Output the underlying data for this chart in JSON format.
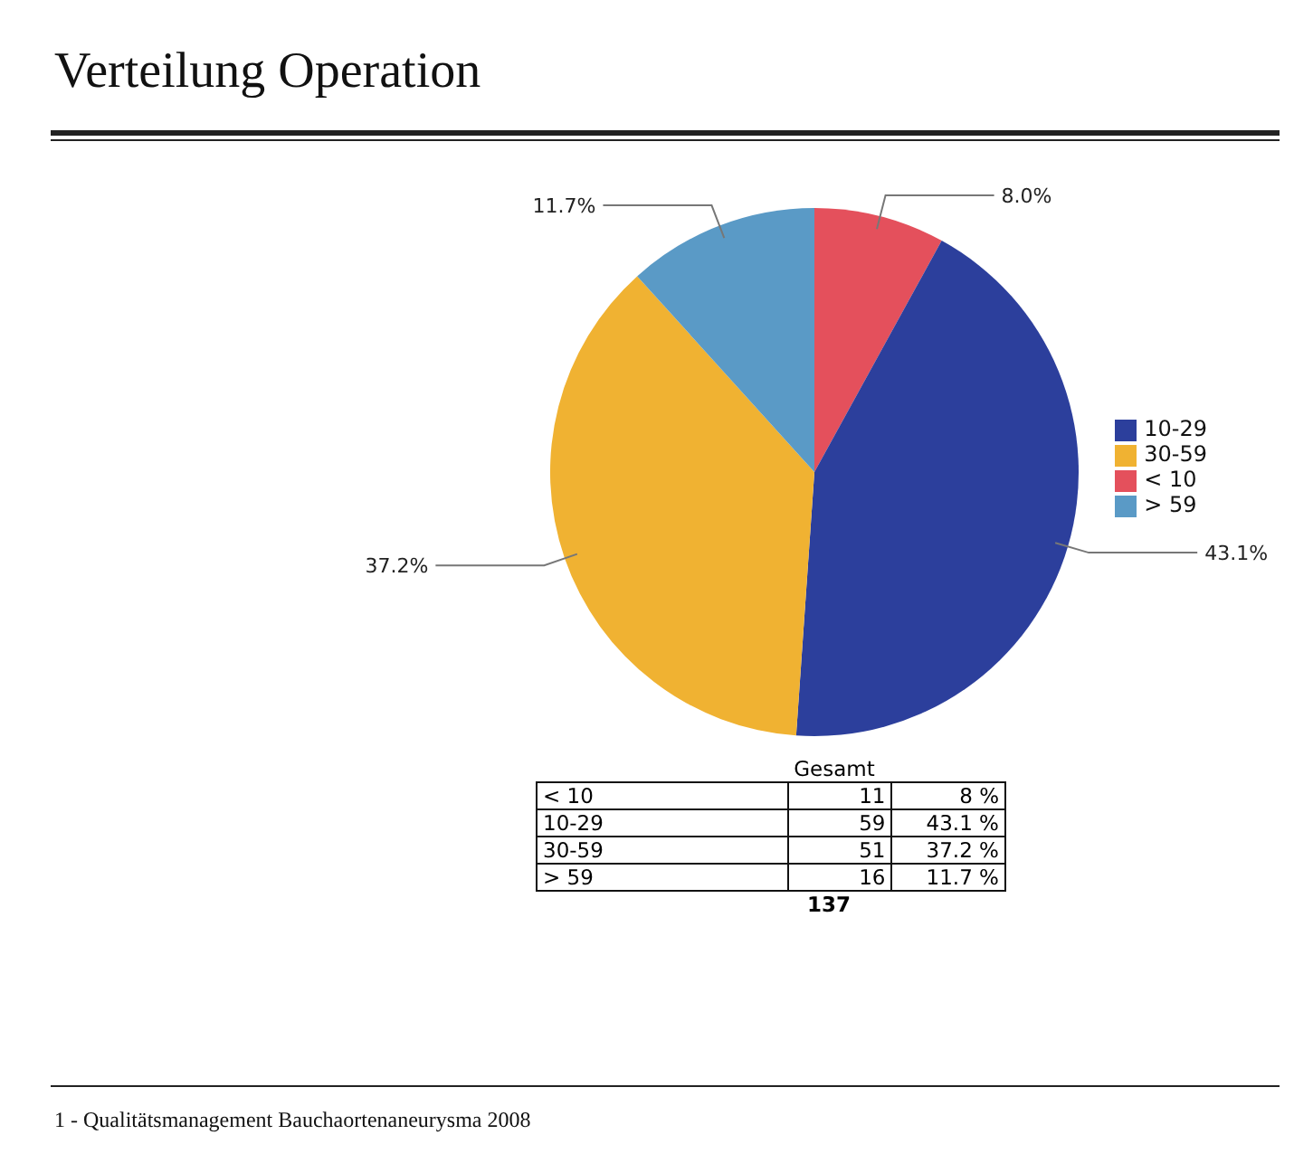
{
  "chart_data": {
    "type": "pie",
    "title": "Verteilung Operation",
    "categories": [
      "< 10",
      "10-29",
      "30-59",
      "> 59"
    ],
    "values": [
      8.0,
      43.1,
      37.2,
      11.7
    ],
    "value_labels": [
      "8.0%",
      "43.1%",
      "37.2%",
      "11.7%"
    ],
    "colors": [
      "#e4505c",
      "#2c3f9c",
      "#f0b232",
      "#5a9ac6"
    ],
    "legend": "right",
    "annotations": [
      "Gesamt",
      "11",
      "8 %",
      "59",
      "43.1 %",
      "51",
      "37.2 %",
      "16",
      "11.7 %",
      "137",
      "1 - Qualitätsmanagement Bauchaortenaneurysma 2008"
    ]
  }
}
